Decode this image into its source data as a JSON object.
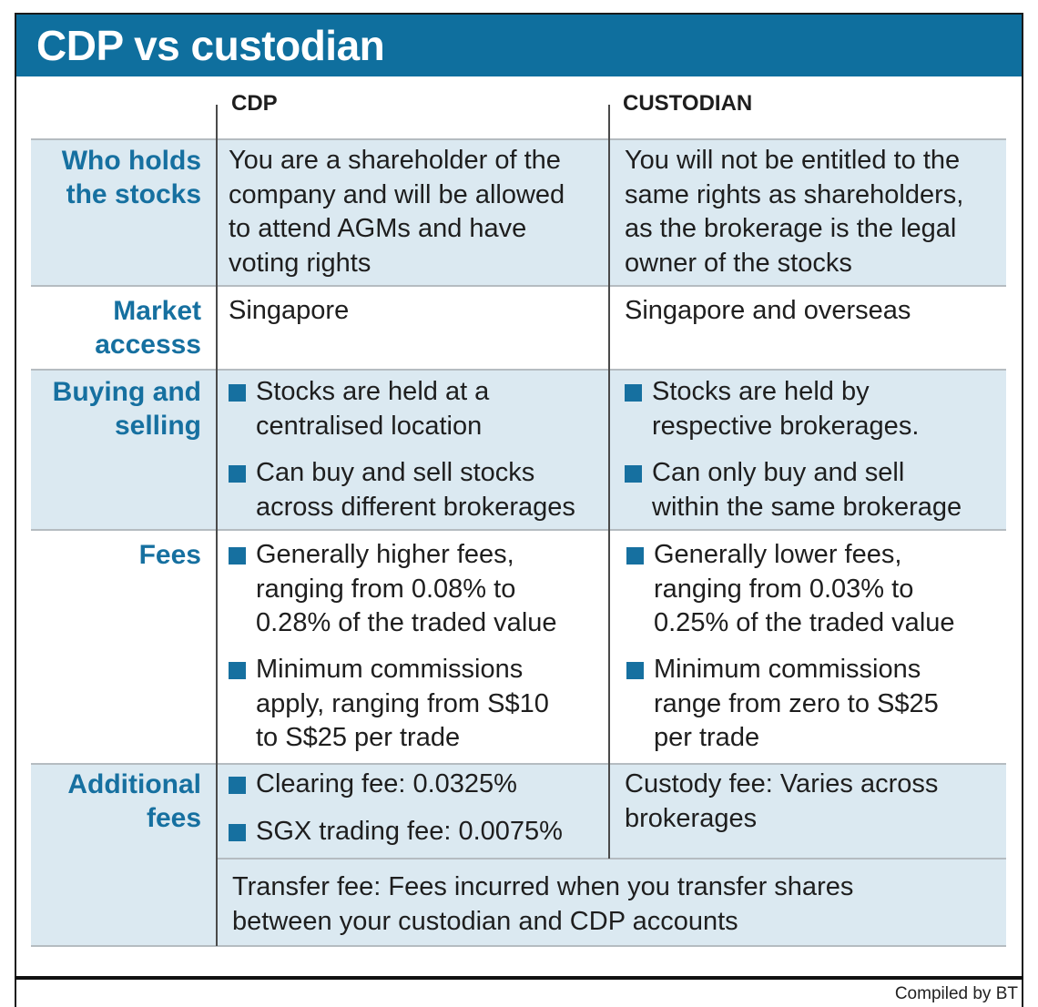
{
  "title": "CDP vs custodian",
  "columns": {
    "cdp": "CDP",
    "custodian": "CUSTODIAN"
  },
  "rows": {
    "who_holds": {
      "label": [
        "Who holds",
        "the stocks"
      ],
      "cdp": [
        "You are a shareholder of the",
        "company and will be allowed",
        "to attend AGMs and have",
        "voting rights"
      ],
      "custodian": [
        "You will not be entitled to the",
        "same rights as shareholders,",
        "as the brokerage is the legal",
        "owner of the stocks"
      ]
    },
    "market_access": {
      "label": [
        "Market",
        "accesss"
      ],
      "cdp": "Singapore",
      "custodian": "Singapore and overseas"
    },
    "buying_selling": {
      "label": [
        "Buying and",
        "selling"
      ],
      "cdp": [
        [
          "Stocks are held at a",
          "centralised location"
        ],
        [
          "Can buy and sell stocks",
          "across different brokerages"
        ]
      ],
      "custodian": [
        [
          "Stocks are held by",
          "respective brokerages."
        ],
        [
          "Can only buy and sell",
          "within the same brokerage"
        ]
      ]
    },
    "fees": {
      "label": "Fees",
      "cdp": [
        [
          "Generally higher fees,",
          "ranging from 0.08% to",
          "0.28% of the traded value"
        ],
        [
          "Minimum commissions",
          "apply, ranging from S$10",
          "to S$25 per trade"
        ]
      ],
      "custodian": [
        [
          "Generally lower fees,",
          "ranging from 0.03% to",
          "0.25% of the traded value"
        ],
        [
          "Minimum commissions",
          "range from zero to S$25",
          "per trade"
        ]
      ]
    },
    "additional_fees": {
      "label": [
        "Additional",
        "fees"
      ],
      "cdp": [
        "Clearing fee: 0.0325%",
        "SGX trading fee: 0.0075%"
      ],
      "custodian": [
        "Custody fee: Varies across",
        "brokerages"
      ],
      "transfer": [
        "Transfer fee: Fees incurred when you transfer shares",
        "between your custodian and CDP accounts"
      ]
    }
  },
  "credit": "Compiled by BT",
  "colors": {
    "header": "#0f6f9e",
    "accent": "#1670a0",
    "band": "#dbe9f1"
  }
}
